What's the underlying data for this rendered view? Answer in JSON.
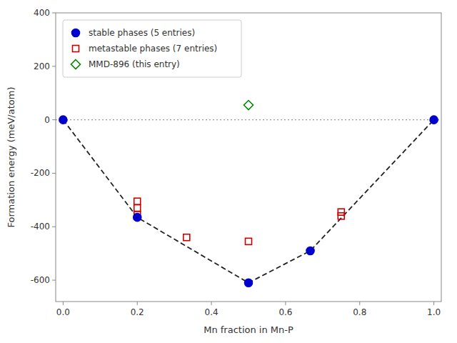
{
  "chart_data": {
    "type": "scatter",
    "x_label": "Mn fraction in Mn-P",
    "y_label": "Formation energy (meV/atom)",
    "xlim": [
      -0.02,
      1.02
    ],
    "ylim": [
      -680,
      400
    ],
    "xticks": [
      {
        "value": 0.0,
        "label": "0.0"
      },
      0.2,
      0.4,
      0.6,
      0.8,
      {
        "value": 1.0,
        "label": "1.0"
      }
    ],
    "yticks": [
      -600,
      -400,
      -200,
      0,
      200,
      400
    ],
    "grid": false,
    "legend": "upper-left",
    "series": [
      {
        "name": "stable phases (5 entries)",
        "type": "scatter",
        "marker": "circle",
        "color": "#0000cc",
        "x": [
          0.0,
          0.2,
          0.5,
          0.6667,
          1.0
        ],
        "values": [
          0,
          -365,
          -610,
          -490,
          0
        ]
      },
      {
        "name": "metastable phases (7 entries)",
        "type": "scatter",
        "marker": "square-open",
        "color": "#cc0000",
        "x": [
          0.2,
          0.2,
          0.2,
          0.333,
          0.5,
          0.75,
          0.75
        ],
        "values": [
          -305,
          -330,
          -355,
          -440,
          -455,
          -345,
          -360
        ]
      },
      {
        "name": "MMD-896 (this entry)",
        "type": "scatter",
        "marker": "diamond-open",
        "color": "#008800",
        "x": [
          0.5
        ],
        "values": [
          55
        ]
      },
      {
        "type": "line",
        "line_style": "dashed",
        "color": "#222222",
        "x": [
          0.0,
          0.2,
          0.5,
          0.6667,
          1.0
        ],
        "values": [
          0,
          -365,
          -610,
          -490,
          0
        ]
      }
    ]
  }
}
